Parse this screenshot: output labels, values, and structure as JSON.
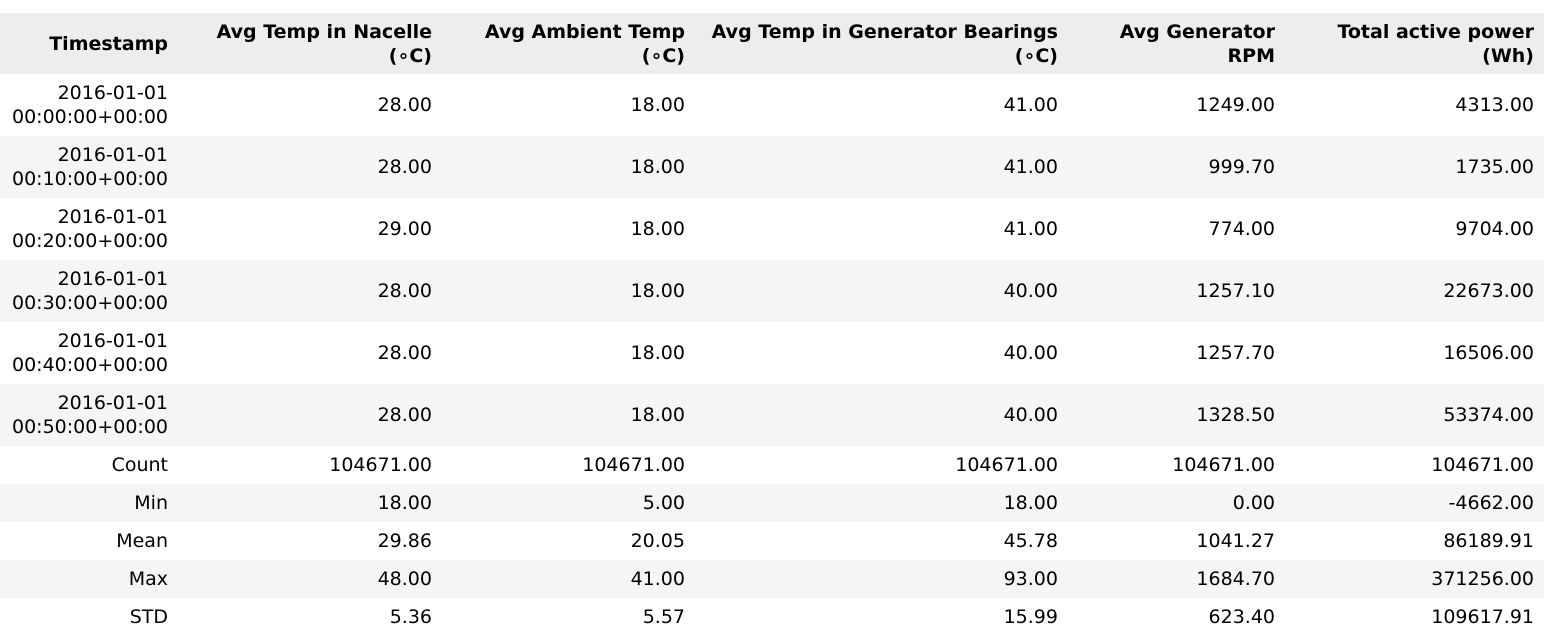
{
  "table": {
    "headers": [
      "Timestamp",
      "Avg Temp in Nacelle (∘C)",
      "Avg Ambient Temp (∘C)",
      "Avg Temp in Generator Bearings (∘C)",
      "Avg Generator RPM",
      "Total active power (Wh)"
    ],
    "rows": [
      [
        "2016-01-01 00:00:00+00:00",
        "28.00",
        "18.00",
        "41.00",
        "1249.00",
        "4313.00"
      ],
      [
        "2016-01-01 00:10:00+00:00",
        "28.00",
        "18.00",
        "41.00",
        "999.70",
        "1735.00"
      ],
      [
        "2016-01-01 00:20:00+00:00",
        "29.00",
        "18.00",
        "41.00",
        "774.00",
        "9704.00"
      ],
      [
        "2016-01-01 00:30:00+00:00",
        "28.00",
        "18.00",
        "40.00",
        "1257.10",
        "22673.00"
      ],
      [
        "2016-01-01 00:40:00+00:00",
        "28.00",
        "18.00",
        "40.00",
        "1257.70",
        "16506.00"
      ],
      [
        "2016-01-01 00:50:00+00:00",
        "28.00",
        "18.00",
        "40.00",
        "1328.50",
        "53374.00"
      ]
    ],
    "stats": [
      [
        "Count",
        "104671.00",
        "104671.00",
        "104671.00",
        "104671.00",
        "104671.00"
      ],
      [
        "Min",
        "18.00",
        "5.00",
        "18.00",
        "0.00",
        "-4662.00"
      ],
      [
        "Mean",
        "29.86",
        "20.05",
        "45.78",
        "1041.27",
        "86189.91"
      ],
      [
        "Max",
        "48.00",
        "41.00",
        "93.00",
        "1684.70",
        "371256.00"
      ],
      [
        "STD",
        "5.36",
        "5.57",
        "15.99",
        "623.40",
        "109617.91"
      ]
    ]
  }
}
